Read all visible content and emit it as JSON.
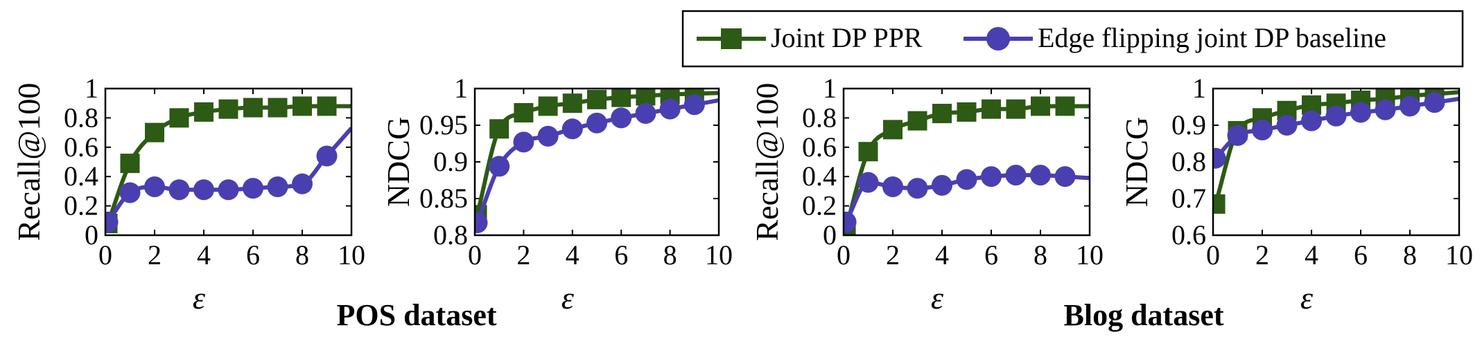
{
  "legend": [
    {
      "label": "Joint DP PPR",
      "color": "#2d5a14",
      "marker": "square"
    },
    {
      "label": "Edge flipping joint DP baseline",
      "color": "#4a3fb0",
      "marker": "circle"
    }
  ],
  "captions": {
    "left": "POS dataset",
    "right": "Blog dataset"
  },
  "chart_data": [
    {
      "type": "line",
      "ylabel": "Recall@100",
      "xlabel": "ε",
      "xlim": [
        0,
        10
      ],
      "ylim": [
        0,
        1
      ],
      "xticks": [
        "0",
        "2",
        "4",
        "6",
        "8",
        "10"
      ],
      "yticks": [
        "0",
        "0.2",
        "0.4",
        "0.6",
        "0.8",
        "1"
      ],
      "x": [
        0.1,
        1,
        2,
        3,
        4,
        5,
        6,
        7,
        8,
        9
      ],
      "series": [
        {
          "name": "Joint DP PPR",
          "values": [
            0.08,
            0.49,
            0.7,
            0.8,
            0.84,
            0.86,
            0.87,
            0.87,
            0.88,
            0.88
          ]
        },
        {
          "name": "Edge flipping joint DP baseline",
          "values": [
            0.09,
            0.29,
            0.33,
            0.31,
            0.31,
            0.31,
            0.32,
            0.33,
            0.35,
            0.54
          ]
        }
      ]
    },
    {
      "type": "line",
      "ylabel": "NDCG",
      "xlabel": "ε",
      "xlim": [
        0,
        10
      ],
      "ylim": [
        0.8,
        1
      ],
      "xticks": [
        "0",
        "2",
        "4",
        "6",
        "8",
        "10"
      ],
      "yticks": [
        "0.8",
        "0.85",
        "0.9",
        "0.95",
        "1"
      ],
      "x": [
        0.1,
        1,
        2,
        3,
        4,
        5,
        6,
        7,
        8,
        9
      ],
      "series": [
        {
          "name": "Joint DP PPR",
          "values": [
            0.828,
            0.945,
            0.967,
            0.976,
            0.98,
            0.985,
            0.988,
            0.99,
            0.992,
            0.993
          ]
        },
        {
          "name": "Edge flipping joint DP baseline",
          "values": [
            0.817,
            0.894,
            0.927,
            0.935,
            0.945,
            0.953,
            0.96,
            0.966,
            0.972,
            0.978
          ]
        }
      ]
    },
    {
      "type": "line",
      "ylabel": "Recall@100",
      "xlabel": "ε",
      "xlim": [
        0,
        10
      ],
      "ylim": [
        0,
        1
      ],
      "xticks": [
        "0",
        "2",
        "4",
        "6",
        "8",
        "10"
      ],
      "yticks": [
        "0",
        "0.2",
        "0.4",
        "0.6",
        "0.8",
        "1"
      ],
      "x": [
        0.1,
        1,
        2,
        3,
        4,
        5,
        6,
        7,
        8,
        9
      ],
      "series": [
        {
          "name": "Joint DP PPR",
          "values": [
            0.05,
            0.57,
            0.72,
            0.78,
            0.83,
            0.84,
            0.86,
            0.86,
            0.88,
            0.88
          ]
        },
        {
          "name": "Edge flipping joint DP baseline",
          "values": [
            0.09,
            0.36,
            0.33,
            0.32,
            0.34,
            0.38,
            0.4,
            0.41,
            0.41,
            0.4
          ]
        }
      ]
    },
    {
      "type": "line",
      "ylabel": "NDCG",
      "xlabel": "ε",
      "xlim": [
        0,
        10
      ],
      "ylim": [
        0.6,
        1
      ],
      "xticks": [
        "0",
        "2",
        "4",
        "6",
        "8",
        "10"
      ],
      "yticks": [
        "0.6",
        "0.7",
        "0.8",
        "0.9",
        "1"
      ],
      "x": [
        0.1,
        1,
        2,
        3,
        4,
        5,
        6,
        7,
        8,
        9
      ],
      "series": [
        {
          "name": "Joint DP PPR",
          "values": [
            0.685,
            0.885,
            0.92,
            0.94,
            0.955,
            0.96,
            0.968,
            0.972,
            0.98,
            0.985
          ]
        },
        {
          "name": "Edge flipping joint DP baseline",
          "values": [
            0.81,
            0.872,
            0.887,
            0.9,
            0.912,
            0.925,
            0.935,
            0.942,
            0.952,
            0.962
          ]
        }
      ]
    }
  ]
}
